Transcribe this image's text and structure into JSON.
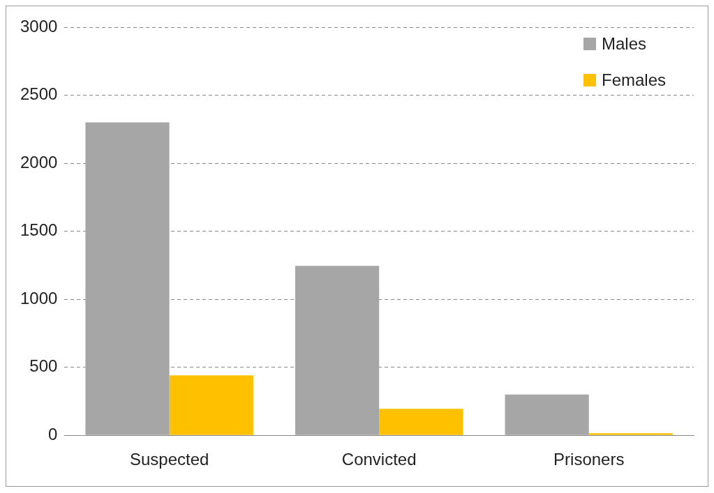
{
  "chart_data": {
    "type": "bar",
    "categories": [
      "Suspected",
      "Convicted",
      "Prisoners"
    ],
    "series": [
      {
        "name": "Males",
        "color": "#a6a6a6",
        "values": [
          2300,
          1245,
          300
        ]
      },
      {
        "name": "Females",
        "color": "#ffc000",
        "values": [
          440,
          195,
          15
        ]
      }
    ],
    "ylim": [
      0,
      3000
    ],
    "yticks": [
      0,
      500,
      1000,
      1500,
      2000,
      2500,
      3000
    ],
    "grid": "y",
    "legend": "top right"
  }
}
